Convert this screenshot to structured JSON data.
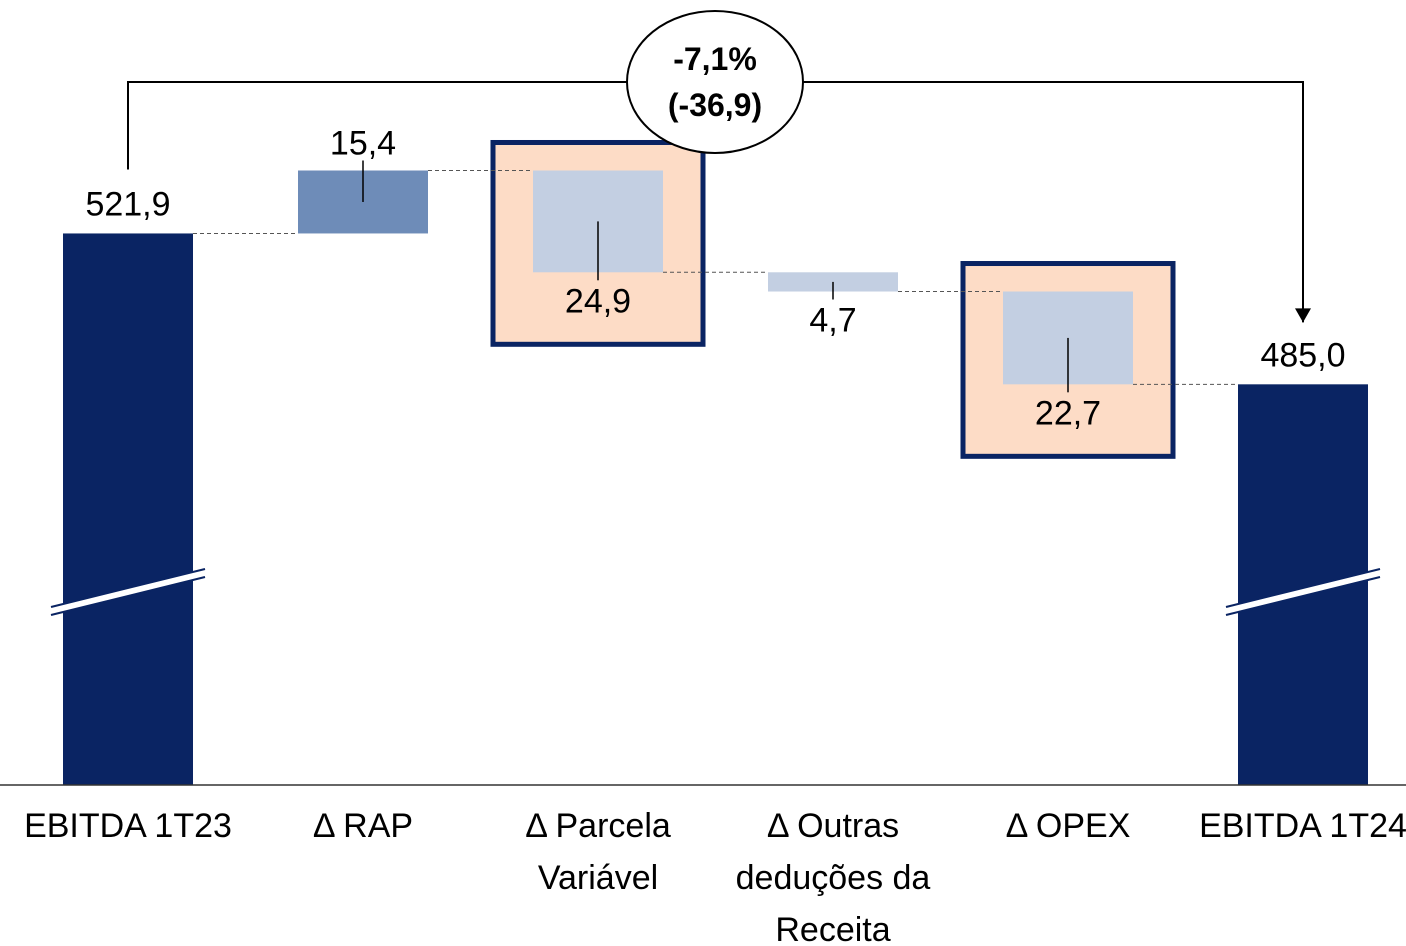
{
  "chart_data": {
    "type": "waterfall",
    "categories": [
      "EBITDA 1T23",
      "Δ RAP",
      "Δ Parcela Variável",
      "Δ Outras deduções da Receita",
      "Δ OPEX",
      "EBITDA 1T24"
    ],
    "measure": [
      "total",
      "relative",
      "relative",
      "relative",
      "relative",
      "total"
    ],
    "values": [
      521.9,
      15.4,
      -24.9,
      -4.7,
      -22.7,
      485.0
    ],
    "value_labels": [
      "521,9",
      "15,4",
      "24,9",
      "4,7",
      "22,7",
      "485,0"
    ],
    "colors": {
      "total": "#0a2463",
      "increase": "#6e8cb8",
      "decrease": "#c3cfe2",
      "highlight": "#fddcc6"
    },
    "highlight": [
      false,
      false,
      true,
      false,
      true,
      false
    ],
    "annotation": [
      "-7,1%",
      "(-36,9)"
    ],
    "axis_break": true,
    "ylim": [
      387,
      579
    ]
  }
}
